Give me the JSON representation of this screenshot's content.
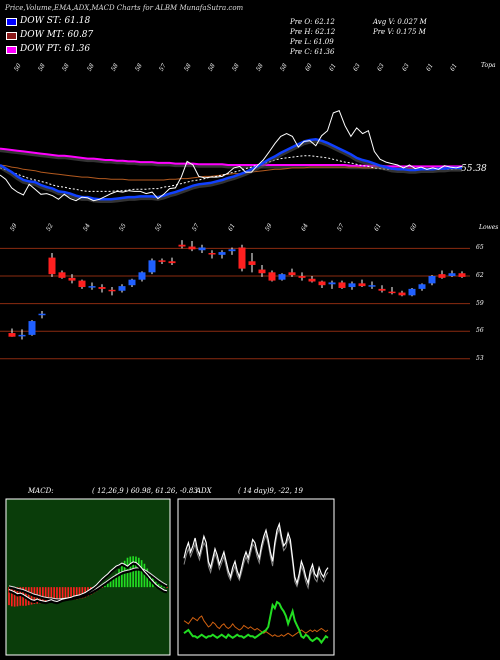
{
  "header": {
    "title": "Price,Volume,EMA,ADX,MACD Charts for ALBM MunafaSutra.com"
  },
  "dow": [
    {
      "label": "DOW ST: 61.18",
      "color": "#0000ff"
    },
    {
      "label": "DOW MT: 60.87",
      "color": "#8b1a1a"
    },
    {
      "label": "DOW PT: 61.36",
      "color": "#ff00ff"
    }
  ],
  "quote": {
    "open": "Pre  O: 62.12",
    "high": "Pre  H: 62.12",
    "low": "Pre  L: 61.09",
    "close": "Pre  C: 61.36",
    "avg_vol": "Avg V: 0.027 M",
    "pre_vol": "Pre  V: 0.175 M"
  },
  "ema_panel": {
    "top_label": "Topa",
    "last_value": "55.38",
    "top_ticks": [
      "50",
      "58",
      "58",
      "58",
      "58",
      "58",
      "57",
      "58",
      "58",
      "58",
      "58",
      "58",
      "60",
      "61",
      "63",
      "63",
      "63",
      "61",
      "61"
    ]
  },
  "candle_panel": {
    "top_label": "Lowes",
    "top_ticks": [
      "59",
      "52",
      "54",
      "55",
      "55",
      "57",
      "61",
      "59",
      "64",
      "57",
      "61",
      "60"
    ],
    "levels": [
      "65",
      "62",
      "59",
      "56",
      "53"
    ]
  },
  "macd": {
    "label": "MACD:",
    "params": "( 12,26,9 ) 60.98,  61.26, -0.83"
  },
  "adx": {
    "label": "ADX",
    "params": "( 14  day)9, -22, 19"
  },
  "chart_data": {
    "type": "candlestick",
    "levels": [
      65,
      62,
      59,
      56,
      53
    ],
    "candles": [
      [
        55.8,
        56.3,
        55.4,
        55.4
      ],
      [
        55.5,
        56.2,
        55.1,
        55.6
      ],
      [
        55.6,
        57.2,
        55.5,
        57.1
      ],
      [
        57.8,
        58.2,
        57.4,
        57.9
      ],
      [
        64.0,
        64.5,
        61.9,
        62.2
      ],
      [
        62.4,
        62.6,
        61.7,
        61.8
      ],
      [
        61.8,
        62.2,
        61.2,
        61.5
      ],
      [
        61.5,
        61.6,
        60.6,
        60.8
      ],
      [
        60.9,
        61.3,
        60.5,
        60.9
      ],
      [
        60.8,
        61.1,
        60.2,
        60.6
      ],
      [
        60.5,
        60.8,
        59.9,
        60.4
      ],
      [
        60.4,
        61.1,
        60.2,
        60.9
      ],
      [
        61.0,
        61.7,
        60.8,
        61.6
      ],
      [
        61.6,
        62.5,
        61.4,
        62.4
      ],
      [
        62.4,
        63.9,
        62.2,
        63.7
      ],
      [
        63.7,
        63.9,
        63.3,
        63.6
      ],
      [
        63.6,
        64.0,
        63.2,
        63.4
      ],
      [
        65.4,
        65.9,
        65.0,
        65.2
      ],
      [
        65.2,
        65.8,
        64.7,
        64.9
      ],
      [
        64.8,
        65.4,
        64.5,
        65.1
      ],
      [
        64.5,
        64.8,
        63.9,
        64.4
      ],
      [
        64.3,
        64.8,
        63.9,
        64.6
      ],
      [
        64.7,
        65.1,
        64.3,
        64.9
      ],
      [
        65.1,
        65.4,
        62.5,
        62.8
      ],
      [
        63.6,
        64.5,
        62.4,
        63.2
      ],
      [
        62.7,
        63.2,
        61.9,
        62.3
      ],
      [
        62.4,
        62.6,
        61.4,
        61.5
      ],
      [
        61.6,
        62.3,
        61.5,
        62.2
      ],
      [
        62.4,
        62.8,
        61.9,
        62.1
      ],
      [
        62.0,
        62.4,
        61.5,
        61.8
      ],
      [
        61.7,
        62.0,
        61.3,
        61.4
      ],
      [
        61.4,
        61.5,
        60.7,
        61.0
      ],
      [
        61.1,
        61.5,
        60.6,
        61.3
      ],
      [
        61.3,
        61.5,
        60.6,
        60.7
      ],
      [
        60.8,
        61.4,
        60.5,
        61.2
      ],
      [
        61.2,
        61.6,
        60.8,
        60.9
      ],
      [
        60.9,
        61.4,
        60.6,
        61.0
      ],
      [
        60.6,
        61.0,
        60.2,
        60.4
      ],
      [
        60.3,
        60.8,
        60.0,
        60.2
      ],
      [
        60.2,
        60.4,
        59.8,
        59.9
      ],
      [
        59.9,
        60.7,
        59.8,
        60.6
      ],
      [
        60.6,
        61.2,
        60.4,
        61.1
      ],
      [
        61.2,
        62.1,
        61.0,
        62.0
      ],
      [
        62.2,
        62.6,
        61.7,
        61.8
      ],
      [
        62.0,
        62.6,
        61.9,
        62.3
      ],
      [
        62.3,
        62.5,
        61.8,
        61.9
      ]
    ],
    "ema_panel": {
      "price": [
        60.2,
        59.6,
        58.4,
        57.8,
        57.4,
        58.9,
        58.2,
        57.5,
        57.6,
        57.3,
        56.8,
        57.5,
        56.9,
        56.6,
        57.1,
        57.0,
        56.6,
        56.8,
        57.2,
        57.6,
        57.9,
        57.8,
        58.0,
        57.9,
        57.9,
        57.6,
        57.8,
        56.9,
        57.5,
        58.3,
        58.4,
        59.9,
        62.1,
        61.6,
        60.0,
        59.8,
        59.9,
        59.9,
        60.0,
        60.5,
        61.2,
        61.4,
        60.6,
        60.6,
        61.5,
        62.3,
        63.4,
        64.6,
        65.6,
        66.0,
        65.6,
        64.1,
        64.9,
        65.0,
        64.3,
        65.7,
        66.4,
        68.9,
        69.2,
        67.1,
        65.6,
        66.8,
        66.0,
        66.4,
        63.5,
        62.4,
        62.0,
        61.8,
        61.6,
        61.2,
        61.6,
        61.1,
        61.3,
        61.0,
        61.2,
        61.0,
        61.5,
        61.3,
        61.2,
        61.4
      ],
      "ema_fast": [
        61.6,
        61.1,
        60.6,
        60.0,
        59.5,
        59.3,
        59.2,
        58.8,
        58.5,
        58.3,
        57.9,
        57.8,
        57.6,
        57.3,
        57.1,
        57.1,
        56.9,
        56.8,
        56.8,
        56.8,
        56.9,
        57.0,
        57.1,
        57.1,
        57.2,
        57.2,
        57.2,
        57.1,
        57.3,
        57.6,
        57.8,
        58.1,
        58.4,
        58.7,
        58.9,
        59.0,
        59.1,
        59.3,
        59.5,
        59.8,
        60.0,
        60.3,
        60.6,
        61.0,
        61.4,
        61.9,
        62.4,
        62.8,
        63.3,
        63.7,
        64.1,
        64.5,
        64.9,
        65.1,
        65.2,
        65.0,
        64.7,
        64.3,
        63.9,
        63.5,
        63.1,
        62.6,
        62.3,
        62.1,
        61.8,
        61.5,
        61.3,
        61.1,
        61.0,
        61.0,
        60.9,
        60.9,
        61.0,
        61.0,
        61.0,
        61.1,
        61.1,
        61.2,
        61.2,
        61.2
      ],
      "ema_mid": [
        61.2,
        60.9,
        60.6,
        60.3,
        60.0,
        59.7,
        59.5,
        59.3,
        59.1,
        58.8,
        58.6,
        58.5,
        58.3,
        58.2,
        58.0,
        57.9,
        57.9,
        57.9,
        57.9,
        57.9,
        58.0,
        58.0,
        58.1,
        58.2,
        58.2,
        58.2,
        58.3,
        58.3,
        58.5,
        58.6,
        58.8,
        59.0,
        59.2,
        59.4,
        59.5,
        59.7,
        59.9,
        60.0,
        60.2,
        60.4,
        60.6,
        60.8,
        61.1,
        61.3,
        61.6,
        61.8,
        62.0,
        62.3,
        62.5,
        62.6,
        62.7,
        62.8,
        62.9,
        62.9,
        62.8,
        62.7,
        62.6,
        62.4,
        62.2,
        62.0,
        61.9,
        61.7,
        61.5,
        61.4,
        61.2,
        61.1,
        61.0,
        61.0,
        61.0,
        60.9,
        60.9,
        60.9,
        60.9,
        61.0,
        61.0,
        61.0,
        61.0,
        61.0,
        61.1,
        61.1
      ],
      "ema_slow": [
        61.6,
        61.5,
        61.3,
        61.2,
        61.0,
        60.9,
        60.8,
        60.6,
        60.5,
        60.4,
        60.3,
        60.2,
        60.1,
        60.0,
        59.9,
        59.9,
        59.8,
        59.7,
        59.7,
        59.6,
        59.6,
        59.6,
        59.5,
        59.5,
        59.5,
        59.5,
        59.5,
        59.5,
        59.5,
        59.6,
        59.6,
        59.7,
        59.7,
        59.8,
        59.9,
        60.0,
        60.0,
        60.1,
        60.2,
        60.3,
        60.4,
        60.4,
        60.5,
        60.6,
        60.7,
        60.8,
        60.9,
        61.0,
        61.0,
        61.1,
        61.2,
        61.2,
        61.2,
        61.3,
        61.3,
        61.3,
        61.3,
        61.3,
        61.3,
        61.3,
        61.3,
        61.3,
        61.2,
        61.2,
        61.2,
        61.2,
        61.2,
        61.1,
        61.1,
        61.1,
        61.1,
        61.1,
        61.1,
        61.1,
        61.1,
        61.1,
        61.1,
        61.1,
        61.1,
        61.1
      ],
      "ema_long": [
        63.9,
        63.8,
        63.7,
        63.6,
        63.5,
        63.4,
        63.3,
        63.2,
        63.1,
        63.0,
        62.9,
        62.9,
        62.8,
        62.7,
        62.6,
        62.5,
        62.5,
        62.4,
        62.3,
        62.3,
        62.2,
        62.2,
        62.1,
        62.1,
        62.0,
        62.0,
        62.0,
        61.9,
        61.9,
        61.9,
        61.8,
        61.8,
        61.8,
        61.8,
        61.7,
        61.7,
        61.7,
        61.7,
        61.7,
        61.6,
        61.6,
        61.6,
        61.6,
        61.6,
        61.6,
        61.6,
        61.6,
        61.6,
        61.6,
        61.6,
        61.6,
        61.6,
        61.6,
        61.6,
        61.6,
        61.6,
        61.6,
        61.6,
        61.6,
        61.6,
        61.5,
        61.5,
        61.5,
        61.5,
        61.5,
        61.5,
        61.4,
        61.4,
        61.4,
        61.4,
        61.4,
        61.4,
        61.4,
        61.4,
        61.4,
        61.4,
        61.4,
        61.4,
        61.4,
        61.4
      ]
    },
    "macd": {
      "histogram": [
        -0.6,
        -0.64,
        -0.65,
        -0.64,
        -0.62,
        -0.62,
        -0.62,
        -0.6,
        -0.58,
        -0.56,
        -0.55,
        -0.54,
        -0.53,
        -0.52,
        -0.52,
        -0.52,
        -0.51,
        -0.5,
        -0.48,
        -0.47,
        -0.46,
        -0.44,
        -0.43,
        -0.42,
        -0.41,
        -0.39,
        -0.37,
        -0.34,
        -0.3,
        -0.25,
        -0.2,
        -0.14,
        -0.08,
        -0.02,
        0.04,
        0.12,
        0.2,
        0.3,
        0.45,
        0.6,
        0.75,
        0.88,
        0.98,
        1.02,
        1.03,
        1.02,
        0.98,
        0.9,
        0.78,
        0.62,
        0.45,
        0.3,
        0.18,
        0.1,
        0.05,
        0.01,
        -0.02
      ],
      "macd": [
        -0.2,
        -0.3,
        -0.4,
        -0.55,
        -0.5,
        -0.6,
        -0.75,
        -0.9,
        -1.05,
        -1.1,
        -1.0,
        -1.1,
        -1.15,
        -1.2,
        -1.12,
        -1.05,
        -1.15,
        -1.2,
        -1.1,
        -1.0,
        -0.95,
        -0.9,
        -0.85,
        -0.75,
        -0.7,
        -0.65,
        -0.55,
        -0.45,
        -0.3,
        -0.15,
        0.0,
        0.2,
        0.45,
        0.7,
        0.9,
        1.1,
        1.35,
        1.55,
        1.75,
        1.85,
        2.0,
        1.9,
        1.75,
        1.95,
        2.1,
        2.05,
        1.85,
        1.6,
        1.3,
        1.05,
        0.75,
        0.5,
        0.25,
        0.05,
        -0.1,
        -0.25,
        -0.3
      ],
      "signal": [
        0.1,
        0.05,
        0.0,
        -0.1,
        -0.15,
        -0.2,
        -0.3,
        -0.4,
        -0.5,
        -0.6,
        -0.65,
        -0.72,
        -0.8,
        -0.85,
        -0.88,
        -0.9,
        -0.95,
        -0.98,
        -0.98,
        -0.95,
        -0.92,
        -0.9,
        -0.87,
        -0.82,
        -0.77,
        -0.72,
        -0.66,
        -0.58,
        -0.48,
        -0.36,
        -0.24,
        -0.1,
        0.05,
        0.22,
        0.38,
        0.55,
        0.72,
        0.88,
        1.02,
        1.15,
        1.28,
        1.35,
        1.4,
        1.46,
        1.55,
        1.6,
        1.6,
        1.55,
        1.45,
        1.32,
        1.15,
        0.98,
        0.8,
        0.62,
        0.45,
        0.3,
        0.18
      ]
    },
    "adx": {
      "dx": [
        0.62,
        0.68,
        0.72,
        0.66,
        0.7,
        0.75,
        0.68,
        0.64,
        0.7,
        0.76,
        0.72,
        0.6,
        0.56,
        0.62,
        0.68,
        0.64,
        0.58,
        0.62,
        0.66,
        0.6,
        0.54,
        0.5,
        0.56,
        0.6,
        0.54,
        0.5,
        0.56,
        0.62,
        0.66,
        0.62,
        0.68,
        0.74,
        0.72,
        0.66,
        0.62,
        0.7,
        0.76,
        0.8,
        0.74,
        0.66,
        0.6,
        0.72,
        0.8,
        0.84,
        0.76,
        0.7,
        0.72,
        0.78,
        0.74,
        0.62,
        0.5,
        0.46,
        0.52,
        0.6,
        0.56,
        0.5,
        0.46,
        0.54,
        0.58,
        0.52,
        0.5,
        0.56,
        0.52,
        0.5,
        0.54,
        0.56
      ],
      "dx_sub": [
        0.58,
        0.64,
        0.68,
        0.63,
        0.67,
        0.71,
        0.65,
        0.61,
        0.67,
        0.72,
        0.69,
        0.57,
        0.53,
        0.59,
        0.65,
        0.61,
        0.55,
        0.59,
        0.63,
        0.57,
        0.51,
        0.48,
        0.53,
        0.57,
        0.51,
        0.48,
        0.53,
        0.59,
        0.63,
        0.59,
        0.65,
        0.71,
        0.69,
        0.63,
        0.59,
        0.67,
        0.73,
        0.77,
        0.71,
        0.63,
        0.57,
        0.69,
        0.77,
        0.81,
        0.73,
        0.67,
        0.69,
        0.75,
        0.71,
        0.59,
        0.47,
        0.44,
        0.49,
        0.57,
        0.53,
        0.47,
        0.43,
        0.51,
        0.55,
        0.49,
        0.47,
        0.53,
        0.49,
        0.47,
        0.51,
        0.53
      ],
      "plus_di": [
        0.14,
        0.15,
        0.16,
        0.14,
        0.12,
        0.12,
        0.11,
        0.12,
        0.13,
        0.12,
        0.11,
        0.12,
        0.12,
        0.13,
        0.12,
        0.11,
        0.12,
        0.13,
        0.12,
        0.11,
        0.13,
        0.12,
        0.11,
        0.12,
        0.13,
        0.12,
        0.12,
        0.11,
        0.12,
        0.13,
        0.12,
        0.12,
        0.11,
        0.12,
        0.13,
        0.14,
        0.15,
        0.16,
        0.18,
        0.25,
        0.32,
        0.3,
        0.34,
        0.33,
        0.3,
        0.28,
        0.25,
        0.2,
        0.24,
        0.28,
        0.22,
        0.19,
        0.16,
        0.12,
        0.11,
        0.13,
        0.12,
        0.1,
        0.09,
        0.1,
        0.11,
        0.1,
        0.08,
        0.1,
        0.12,
        0.11
      ],
      "minus_di": [
        0.22,
        0.21,
        0.2,
        0.22,
        0.24,
        0.23,
        0.22,
        0.24,
        0.25,
        0.22,
        0.2,
        0.18,
        0.19,
        0.21,
        0.2,
        0.18,
        0.17,
        0.19,
        0.2,
        0.18,
        0.17,
        0.18,
        0.2,
        0.18,
        0.17,
        0.16,
        0.17,
        0.19,
        0.18,
        0.17,
        0.18,
        0.17,
        0.16,
        0.17,
        0.16,
        0.15,
        0.14,
        0.15,
        0.14,
        0.13,
        0.12,
        0.13,
        0.12,
        0.12,
        0.13,
        0.12,
        0.13,
        0.14,
        0.13,
        0.12,
        0.13,
        0.14,
        0.15,
        0.16,
        0.15,
        0.14,
        0.15,
        0.16,
        0.15,
        0.16,
        0.15,
        0.16,
        0.17,
        0.16,
        0.15,
        0.16
      ]
    }
  }
}
